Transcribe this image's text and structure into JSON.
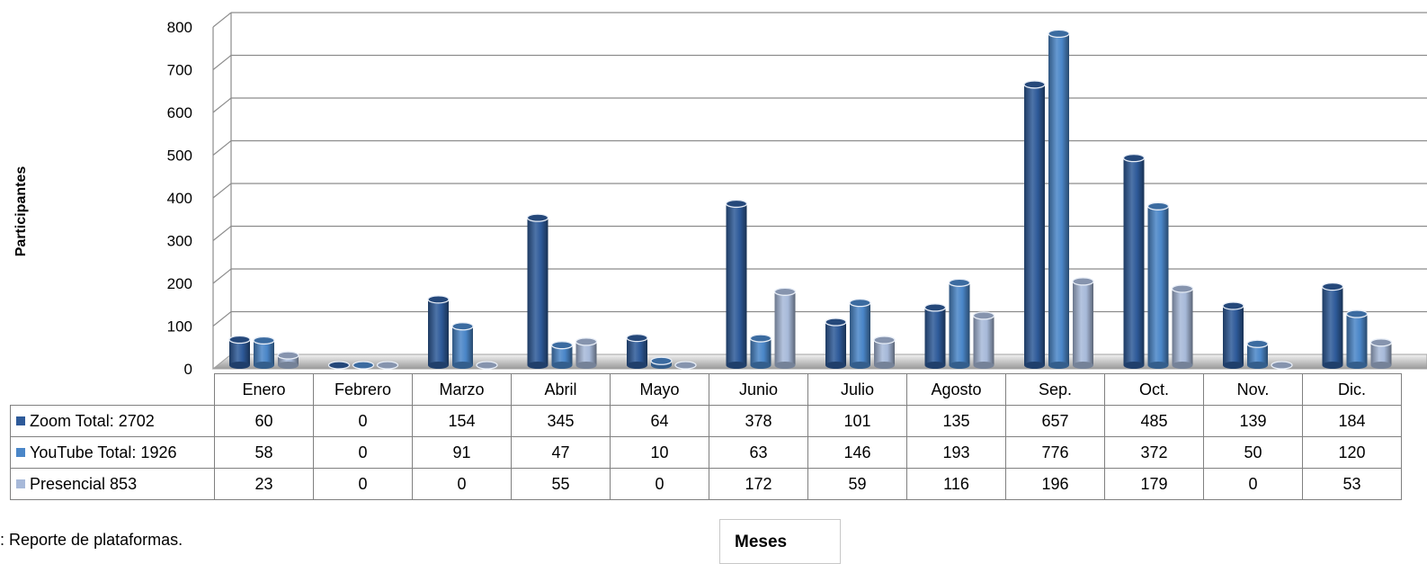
{
  "chart_data": {
    "type": "bar",
    "ylabel": "Participantes",
    "ylim": [
      0,
      800
    ],
    "yticks": [
      0,
      100,
      200,
      300,
      400,
      500,
      600,
      700,
      800
    ],
    "categories": [
      "Enero",
      "Febrero",
      "Marzo",
      "Abril",
      "Mayo",
      "Junio",
      "Julio",
      "Agosto",
      "Sep.",
      "Oct.",
      "Nov.",
      "Dic."
    ],
    "series": [
      {
        "name": "Zoom  Total: 2702",
        "color": "#2e5a99",
        "values": [
          60,
          0,
          154,
          345,
          64,
          378,
          101,
          135,
          657,
          485,
          139,
          184
        ]
      },
      {
        "name": "YouTube  Total: 1926",
        "color": "#4a86c8",
        "values": [
          58,
          0,
          91,
          47,
          10,
          63,
          146,
          193,
          776,
          372,
          50,
          120
        ]
      },
      {
        "name": "Presencial 853",
        "color": "#a7b9d9",
        "values": [
          23,
          0,
          0,
          55,
          0,
          172,
          59,
          116,
          196,
          179,
          0,
          53
        ]
      }
    ],
    "grid": true,
    "data_table": true,
    "xlabel": "Meses"
  },
  "source_text": ":  Reporte de  plataformas.",
  "axis_title_box": "Meses"
}
